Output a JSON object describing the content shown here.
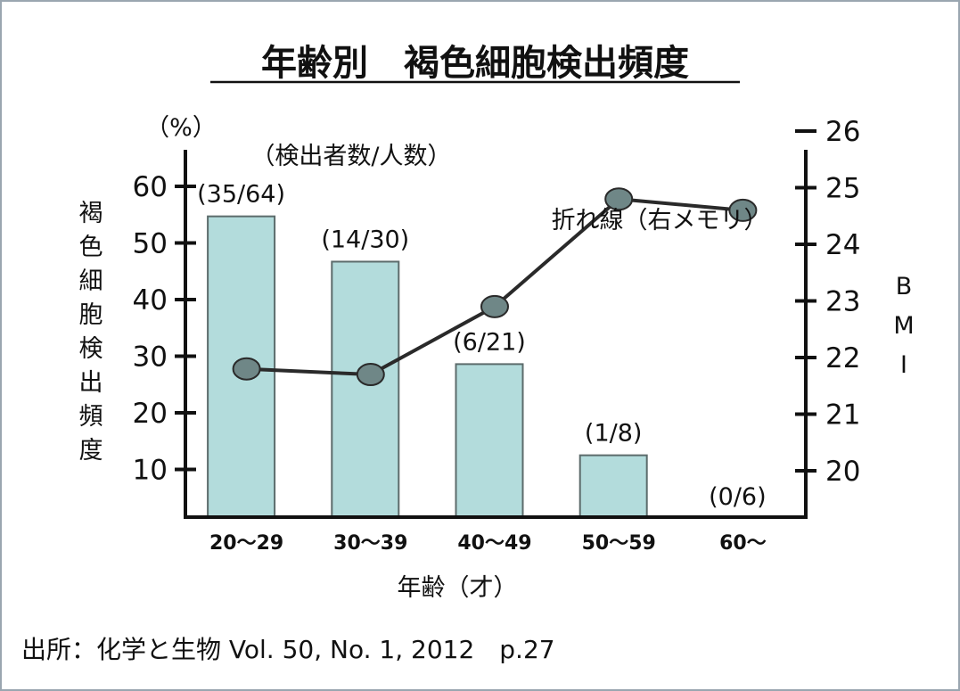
{
  "chart_data": {
    "type": "bar",
    "title": "年齢別　褐色細胞検出頻度",
    "categories": [
      "20～29",
      "30～39",
      "40～49",
      "50～59",
      "60～"
    ],
    "xlabel": "年齢（才）",
    "ylabel": "褐色細胞検出頻度",
    "y_unit": "（%）",
    "y2label": "BMI",
    "ylim": [
      0,
      60
    ],
    "y_ticks": [
      10,
      20,
      30,
      40,
      50,
      60
    ],
    "y2lim": [
      19.8,
      26
    ],
    "y2_ticks": [
      20,
      21,
      22,
      23,
      24,
      25,
      26
    ],
    "count_header": "（検出者数/人数）",
    "series": [
      {
        "type": "bar",
        "axis": "left",
        "values": [
          54.7,
          46.7,
          28.6,
          12.5,
          0
        ],
        "labels": [
          "(35/64)",
          "(14/30)",
          "(6/21)",
          "(1/8)",
          "(0/6)"
        ]
      },
      {
        "type": "line",
        "axis": "right",
        "name": "折れ線（右メモリ）",
        "values": [
          21.8,
          21.7,
          22.9,
          24.8,
          24.6
        ]
      }
    ],
    "colors": {
      "bar_fill": "#b3dcdc",
      "bar_stroke": "#5c6b6b",
      "line": "#2a2a2a",
      "marker": "#6f8787"
    },
    "grid": false,
    "source": "出所：化学と生物 Vol. 50, No. 1, 2012　p.27"
  }
}
